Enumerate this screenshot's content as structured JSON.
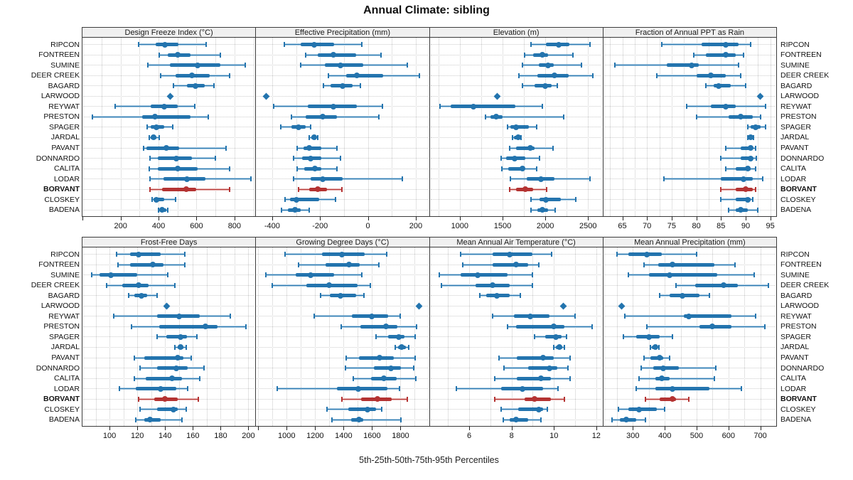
{
  "title": "Annual Climate: sibling",
  "caption": "5th-25th-50th-75th-95th Percentiles",
  "stations": [
    "RIPCON",
    "FONTREEN",
    "SUMINE",
    "DEER CREEK",
    "BAGARD",
    "LARWOOD",
    "REYWAT",
    "PRESTON",
    "SPAGER",
    "JARDAL",
    "PAVANT",
    "DONNARDO",
    "CALITA",
    "LODAR",
    "BORVANT",
    "CLOSKEY",
    "BADENA"
  ],
  "highlight_station": "BORVANT",
  "single_value_station": "LARWOOD",
  "colors": {
    "blue": "#2374ae",
    "blue_light": "#aacbe2",
    "red": "#b43332",
    "red_light": "#e6b2b0",
    "grid": "#c8c8c8",
    "border": "#3c3c3c",
    "header_bg": "#f0f0f0",
    "text": "#111111"
  },
  "chart_data": [
    {
      "type": "scatter",
      "subtype": "percentile_range",
      "title": "Design Freeze Index (°C)",
      "xlim": [
        -5,
        910
      ],
      "ticks": [
        200,
        400,
        600,
        800
      ],
      "tick_step": 200,
      "grid_step": 100,
      "series": [
        [
          295,
          385,
          435,
          505,
          650
        ],
        [
          405,
          450,
          500,
          570,
          725
        ],
        [
          345,
          460,
          605,
          725,
          855
        ],
        [
          410,
          490,
          575,
          670,
          775
        ],
        [
          480,
          550,
          595,
          645,
          690
        ],
        460,
        [
          170,
          360,
          430,
          500,
          590
        ],
        [
          50,
          315,
          380,
          570,
          660
        ],
        [
          340,
          360,
          390,
          430,
          475
        ],
        [
          350,
          360,
          375,
          390,
          405
        ],
        [
          320,
          335,
          440,
          510,
          755
        ],
        [
          355,
          395,
          495,
          575,
          700
        ],
        [
          350,
          395,
          500,
          605,
          775
        ],
        [
          355,
          425,
          550,
          645,
          885
        ],
        [
          355,
          420,
          545,
          600,
          775
        ],
        [
          365,
          375,
          390,
          430,
          490
        ],
        [
          400,
          405,
          420,
          440,
          450
        ]
      ]
    },
    {
      "type": "scatter",
      "subtype": "percentile_range",
      "title": "Effective Precipitation (mm)",
      "xlim": [
        -470,
        255
      ],
      "ticks": [
        -400,
        -200,
        0,
        200
      ],
      "tick_step": 200,
      "grid_step": 100,
      "series": [
        [
          -350,
          -280,
          -225,
          -140,
          -25
        ],
        [
          -260,
          -210,
          -145,
          -50,
          55
        ],
        [
          -280,
          -180,
          -115,
          -20,
          165
        ],
        [
          -165,
          -90,
          -45,
          65,
          215
        ],
        [
          -185,
          -155,
          -105,
          -65,
          -30
        ],
        -425,
        [
          -395,
          -250,
          -145,
          -45,
          60
        ],
        [
          -320,
          -260,
          -190,
          -130,
          45
        ],
        [
          -365,
          -320,
          -290,
          -260,
          -240
        ],
        [
          -245,
          -235,
          -225,
          -215,
          -210
        ],
        [
          -295,
          -270,
          -245,
          -195,
          -130
        ],
        [
          -310,
          -275,
          -240,
          -195,
          -115
        ],
        [
          -295,
          -265,
          -220,
          -195,
          -130
        ],
        [
          -310,
          -240,
          -190,
          -105,
          145
        ],
        [
          -290,
          -245,
          -210,
          -170,
          -110
        ],
        [
          -345,
          -325,
          -300,
          -205,
          -135
        ],
        [
          -360,
          -335,
          -305,
          -280,
          -245
        ]
      ]
    },
    {
      "type": "scatter",
      "subtype": "percentile_range",
      "title": "Elevation (m)",
      "xlim": [
        640,
        2670
      ],
      "ticks": [
        1000,
        1500,
        2000,
        2500
      ],
      "tick_step": 500,
      "grid_step": 250,
      "series": [
        [
          1830,
          2010,
          2160,
          2280,
          2520
        ],
        [
          1755,
          1855,
          1965,
          2030,
          2325
        ],
        [
          1730,
          1920,
          2030,
          2100,
          2420
        ],
        [
          1695,
          1905,
          2105,
          2270,
          2555
        ],
        [
          1730,
          1875,
          1995,
          2070,
          2140
        ],
        1440,
        [
          765,
          895,
          1160,
          1650,
          1965
        ],
        [
          1300,
          1360,
          1425,
          1500,
          2215
        ],
        [
          1560,
          1590,
          1660,
          1810,
          1895
        ],
        [
          1615,
          1635,
          1680,
          1700,
          1720
        ],
        [
          1580,
          1655,
          1825,
          1875,
          2090
        ],
        [
          1480,
          1540,
          1640,
          1765,
          1935
        ],
        [
          1495,
          1565,
          1730,
          1760,
          1895
        ],
        [
          1595,
          1785,
          1950,
          2110,
          2520
        ],
        [
          1580,
          1660,
          1770,
          1855,
          2015
        ],
        [
          1835,
          1930,
          2005,
          2180,
          2355
        ],
        [
          1830,
          1910,
          1965,
          2030,
          2115
        ]
      ]
    },
    {
      "type": "scatter",
      "subtype": "percentile_range",
      "title": "Fraction of Annual PPT as Rain",
      "xlim": [
        61,
        96.2
      ],
      "ticks": [
        65,
        70,
        75,
        80,
        85,
        90,
        95
      ],
      "tick_step": 5,
      "grid_step": 2.5,
      "series": [
        [
          73,
          81,
          86,
          88.5,
          91
        ],
        [
          79.5,
          82,
          86,
          88,
          89.5
        ],
        [
          63.5,
          74,
          79,
          80.5,
          88.5
        ],
        [
          72,
          80,
          83,
          86,
          89
        ],
        [
          82,
          83.5,
          84.5,
          87,
          90
        ],
        93,
        [
          78,
          83,
          86,
          88,
          94
        ],
        [
          80,
          86.5,
          89,
          91.5,
          93
        ],
        [
          90.5,
          91,
          92,
          93,
          94
        ],
        [
          90.5,
          90.8,
          91,
          91.3,
          91.6
        ],
        [
          86,
          89,
          91,
          91.5,
          92
        ],
        [
          85,
          89,
          91,
          91.5,
          92.2
        ],
        [
          86,
          88,
          90.5,
          91,
          92
        ],
        [
          73.5,
          85,
          89.5,
          91.5,
          93.5
        ],
        [
          85,
          88,
          90,
          91.5,
          92
        ],
        [
          85,
          88,
          90.5,
          91,
          91.5
        ],
        [
          86.5,
          88,
          89,
          90.5,
          92.5
        ]
      ]
    },
    {
      "type": "scatter",
      "subtype": "percentile_range",
      "title": "Frost-Free Days",
      "xlim": [
        80,
        205
      ],
      "ticks": [
        100,
        120,
        140,
        160,
        180,
        200
      ],
      "tick_step": 20,
      "grid_step": 10,
      "series": [
        [
          105,
          115,
          121,
          137,
          154
        ],
        [
          106,
          115,
          131,
          139,
          154
        ],
        [
          87,
          93,
          101,
          120,
          142
        ],
        [
          98,
          109,
          121,
          128,
          147
        ],
        [
          114,
          118,
          123,
          127,
          134
        ],
        141,
        [
          103,
          134,
          150,
          165,
          187
        ],
        [
          116,
          136,
          169,
          178,
          198
        ],
        [
          134,
          141,
          151,
          156,
          163
        ],
        [
          147,
          149,
          151,
          153,
          155
        ],
        [
          118,
          125,
          149,
          153,
          159
        ],
        [
          122,
          134,
          148,
          156,
          168
        ],
        [
          118,
          126,
          145,
          152,
          165
        ],
        [
          107,
          119,
          137,
          148,
          156
        ],
        [
          121,
          132,
          140,
          149,
          164
        ],
        [
          122,
          134,
          146,
          149,
          155
        ],
        [
          119,
          125,
          129,
          137,
          152
        ]
      ]
    },
    {
      "type": "scatter",
      "subtype": "percentile_range",
      "title": "Growing Degree Days (°C)",
      "xlim": [
        780,
        2000
      ],
      "ticks": [
        1000,
        1200,
        1400,
        1600,
        1800
      ],
      "tick_step": 200,
      "grid_step": 100,
      "series": [
        [
          990,
          1250,
          1390,
          1550,
          1705
        ],
        [
          1085,
          1275,
          1440,
          1515,
          1650
        ],
        [
          855,
          1065,
          1170,
          1335,
          1530
        ],
        [
          900,
          1140,
          1300,
          1500,
          1590
        ],
        [
          1240,
          1305,
          1380,
          1490,
          1545
        ],
        1930,
        [
          1195,
          1460,
          1600,
          1715,
          1800
        ],
        [
          1385,
          1520,
          1700,
          1780,
          1915
        ],
        [
          1630,
          1715,
          1790,
          1830,
          1905
        ],
        [
          1765,
          1785,
          1810,
          1840,
          1860
        ],
        [
          1420,
          1510,
          1655,
          1755,
          1905
        ],
        [
          1415,
          1615,
          1735,
          1805,
          1895
        ],
        [
          1470,
          1595,
          1685,
          1775,
          1910
        ],
        [
          935,
          1355,
          1505,
          1710,
          1795
        ],
        [
          1390,
          1525,
          1640,
          1740,
          1850
        ],
        [
          1285,
          1435,
          1570,
          1630,
          1670
        ],
        [
          1320,
          1455,
          1510,
          1540,
          1805
        ]
      ]
    },
    {
      "type": "scatter",
      "subtype": "percentile_range",
      "title": "Mean Annual Air Temperature (°C)",
      "xlim": [
        4.1,
        12.3
      ],
      "ticks": [
        6,
        8,
        10,
        12
      ],
      "tick_step": 2,
      "grid_step": 1,
      "series": [
        [
          5.6,
          7.1,
          7.9,
          9.0,
          9.9
        ],
        [
          5.7,
          7.1,
          8.2,
          8.8,
          9.3
        ],
        [
          4.6,
          5.6,
          6.4,
          7.8,
          9.0
        ],
        [
          4.7,
          6.3,
          7.1,
          7.9,
          9.0
        ],
        [
          6.5,
          6.8,
          7.3,
          7.9,
          8.4
        ],
        10.45,
        [
          7.1,
          8.1,
          8.9,
          9.8,
          11.0
        ],
        [
          7.8,
          8.2,
          10.0,
          10.5,
          11.8
        ],
        [
          9.1,
          9.6,
          10.1,
          10.35,
          10.6
        ],
        [
          10.0,
          10.1,
          10.25,
          10.4,
          10.5
        ],
        [
          7.4,
          8.25,
          9.5,
          10.0,
          10.75
        ],
        [
          7.65,
          8.8,
          9.8,
          10.15,
          10.65
        ],
        [
          7.2,
          8.25,
          9.4,
          9.85,
          10.75
        ],
        [
          5.4,
          7.5,
          8.5,
          9.5,
          10.2
        ],
        [
          7.2,
          8.6,
          9.1,
          9.85,
          10.5
        ],
        [
          7.5,
          8.3,
          9.3,
          9.5,
          9.7
        ],
        [
          7.6,
          7.9,
          8.2,
          8.8,
          9.4
        ]
      ]
    },
    {
      "type": "scatter",
      "subtype": "percentile_range",
      "title": "Mean Annual Precipitation (mm)",
      "xlim": [
        205,
        750
      ],
      "ticks": [
        300,
        400,
        500,
        600,
        700
      ],
      "tick_step": 100,
      "grid_step": 50,
      "series": [
        [
          250,
          285,
          345,
          390,
          500
        ],
        [
          335,
          380,
          425,
          555,
          620
        ],
        [
          285,
          350,
          415,
          565,
          680
        ],
        [
          435,
          495,
          585,
          630,
          725
        ],
        [
          385,
          415,
          455,
          510,
          540
        ],
        265,
        [
          275,
          460,
          475,
          610,
          685
        ],
        [
          345,
          510,
          550,
          610,
          715
        ],
        [
          270,
          310,
          350,
          385,
          425
        ],
        [
          355,
          360,
          370,
          377,
          382
        ],
        [
          335,
          355,
          385,
          395,
          415
        ],
        [
          325,
          365,
          395,
          445,
          560
        ],
        [
          320,
          370,
          390,
          415,
          555
        ],
        [
          310,
          370,
          425,
          540,
          640
        ],
        [
          340,
          385,
          425,
          435,
          475
        ],
        [
          255,
          285,
          320,
          375,
          400
        ],
        [
          235,
          260,
          280,
          310,
          340
        ]
      ]
    }
  ]
}
